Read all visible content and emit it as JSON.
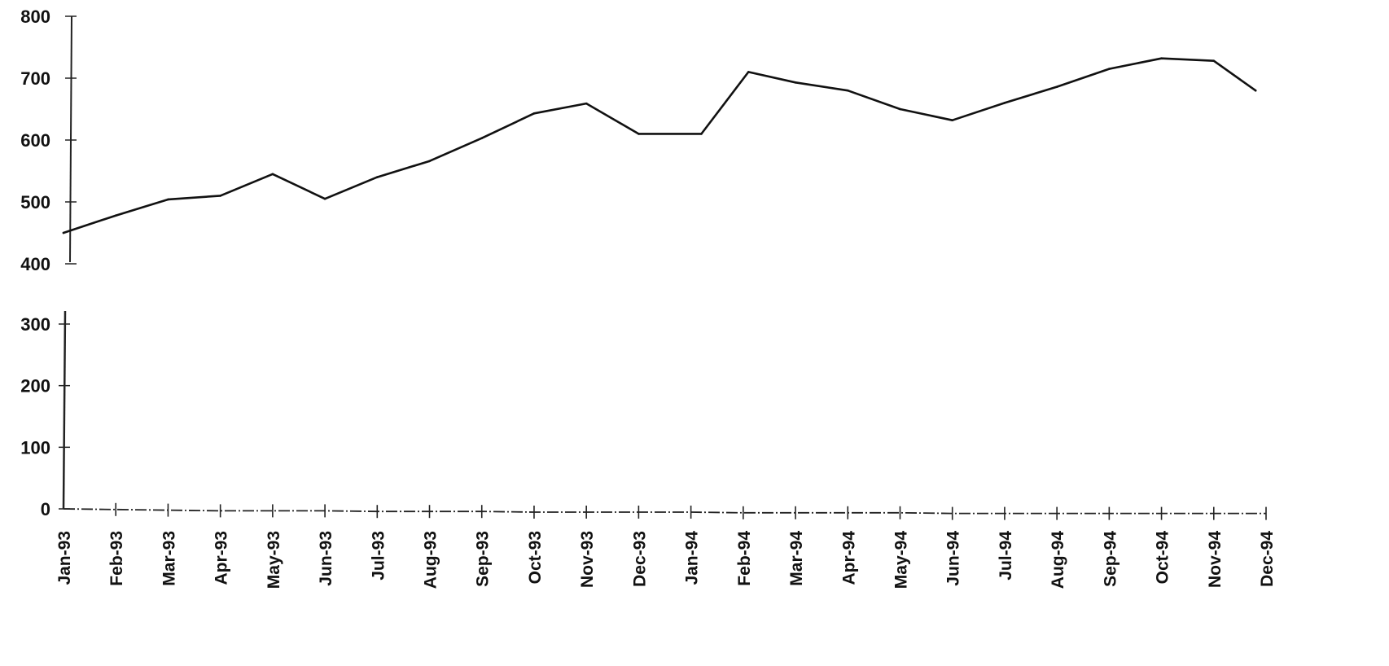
{
  "chart_data": {
    "type": "line",
    "title": "",
    "xlabel": "",
    "ylabel": "",
    "axis_break": {
      "between": [
        300,
        400
      ]
    },
    "ylim": [
      0,
      800
    ],
    "y_ticks": [
      {
        "value": 800,
        "label": "800"
      },
      {
        "value": 700,
        "label": "700"
      },
      {
        "value": 600,
        "label": "600"
      },
      {
        "value": 500,
        "label": "500"
      },
      {
        "value": 400,
        "label": "400"
      },
      {
        "value": 300,
        "label": "300"
      },
      {
        "value": 200,
        "label": "200"
      },
      {
        "value": 100,
        "label": "100"
      },
      {
        "value": 0,
        "label": "0"
      }
    ],
    "categories": [
      "Jan-93",
      "Feb-93",
      "Mar-93",
      "Apr-93",
      "May-93",
      "Jun-93",
      "Jul-93",
      "Aug-93",
      "Sep-93",
      "Oct-93",
      "Nov-93",
      "Dec-93",
      "Jan-94",
      "Feb-94",
      "Mar-94",
      "Apr-94",
      "May-94",
      "Jun-94",
      "Jul-94",
      "Aug-94",
      "Sep-94",
      "Oct-94",
      "Nov-94",
      "Dec-94"
    ],
    "series": [
      {
        "points": [
          {
            "x": 0.0,
            "y": 450
          },
          {
            "x": 1.0,
            "y": 478
          },
          {
            "x": 2.0,
            "y": 504
          },
          {
            "x": 3.0,
            "y": 510
          },
          {
            "x": 4.0,
            "y": 545
          },
          {
            "x": 5.0,
            "y": 505
          },
          {
            "x": 6.0,
            "y": 540
          },
          {
            "x": 7.0,
            "y": 566
          },
          {
            "x": 8.0,
            "y": 603
          },
          {
            "x": 9.0,
            "y": 643
          },
          {
            "x": 10.0,
            "y": 659
          },
          {
            "x": 11.0,
            "y": 610
          },
          {
            "x": 12.2,
            "y": 610
          },
          {
            "x": 13.1,
            "y": 710
          },
          {
            "x": 14.0,
            "y": 693
          },
          {
            "x": 15.0,
            "y": 680
          },
          {
            "x": 16.0,
            "y": 650
          },
          {
            "x": 17.0,
            "y": 632
          },
          {
            "x": 18.0,
            "y": 660
          },
          {
            "x": 19.0,
            "y": 686
          },
          {
            "x": 20.0,
            "y": 715
          },
          {
            "x": 21.0,
            "y": 732
          },
          {
            "x": 22.0,
            "y": 728
          },
          {
            "x": 22.8,
            "y": 680
          }
        ]
      }
    ],
    "baseline": [
      {
        "x": 0,
        "y": 0
      },
      {
        "x": 1,
        "y": -1
      },
      {
        "x": 2,
        "y": -2
      },
      {
        "x": 3,
        "y": -3
      },
      {
        "x": 4,
        "y": -3
      },
      {
        "x": 5,
        "y": -3
      },
      {
        "x": 6,
        "y": -4
      },
      {
        "x": 7,
        "y": -4
      },
      {
        "x": 8,
        "y": -4
      },
      {
        "x": 9,
        "y": -5
      },
      {
        "x": 10,
        "y": -5
      },
      {
        "x": 11,
        "y": -5
      },
      {
        "x": 12,
        "y": -5
      },
      {
        "x": 13,
        "y": -6
      },
      {
        "x": 14,
        "y": -6
      },
      {
        "x": 15,
        "y": -6
      },
      {
        "x": 16,
        "y": -6
      },
      {
        "x": 17,
        "y": -7
      },
      {
        "x": 18,
        "y": -7
      },
      {
        "x": 19,
        "y": -7
      },
      {
        "x": 20,
        "y": -7
      },
      {
        "x": 21,
        "y": -7
      },
      {
        "x": 22,
        "y": -7
      },
      {
        "x": 23,
        "y": -7
      }
    ],
    "grid": false,
    "legend": "none",
    "colors": {
      "line": "#111111",
      "axis": "#222222"
    }
  }
}
